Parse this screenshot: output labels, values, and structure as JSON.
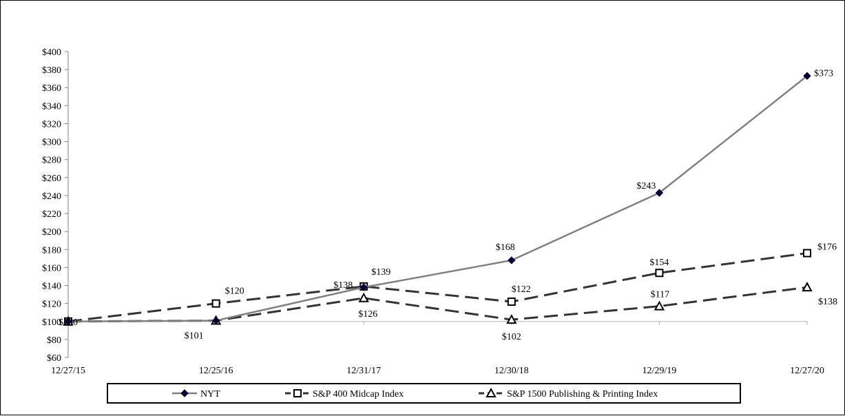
{
  "chart_data": {
    "type": "line",
    "categories": [
      "12/27/15",
      "12/25/16",
      "12/31/17",
      "12/30/18",
      "12/29/19",
      "12/27/20"
    ],
    "y_ticks": [
      "$60",
      "$80",
      "$100",
      "$120",
      "$140",
      "$160",
      "$180",
      "$200",
      "$220",
      "$240",
      "$260",
      "$280",
      "$300",
      "$320",
      "$340",
      "$360",
      "$380",
      "$400"
    ],
    "ylim": [
      60,
      400
    ],
    "y_step": 20,
    "grid": false,
    "legend_position": "bottom",
    "series": [
      {
        "name": "NYT",
        "values": [
          100,
          101,
          138,
          168,
          243,
          373
        ],
        "labels": [
          "$100",
          "$101",
          "$138",
          "$168",
          "$243",
          "$373"
        ],
        "color": "#808080",
        "line_style": "solid",
        "marker": "diamond"
      },
      {
        "name": "S&P 400 Midcap Index",
        "values": [
          100,
          120,
          139,
          122,
          154,
          176
        ],
        "labels": [
          "",
          "$120",
          "$139",
          "$122",
          "$154",
          "$176"
        ],
        "color": "#333333",
        "line_style": "dashed",
        "marker": "square"
      },
      {
        "name": "S&P 1500 Publishing & Printing Index",
        "values": [
          100,
          101,
          126,
          102,
          117,
          138
        ],
        "labels": [
          "",
          "",
          "$126",
          "$102",
          "$117",
          "$138"
        ],
        "color": "#333333",
        "line_style": "dashed",
        "marker": "triangle"
      }
    ]
  }
}
